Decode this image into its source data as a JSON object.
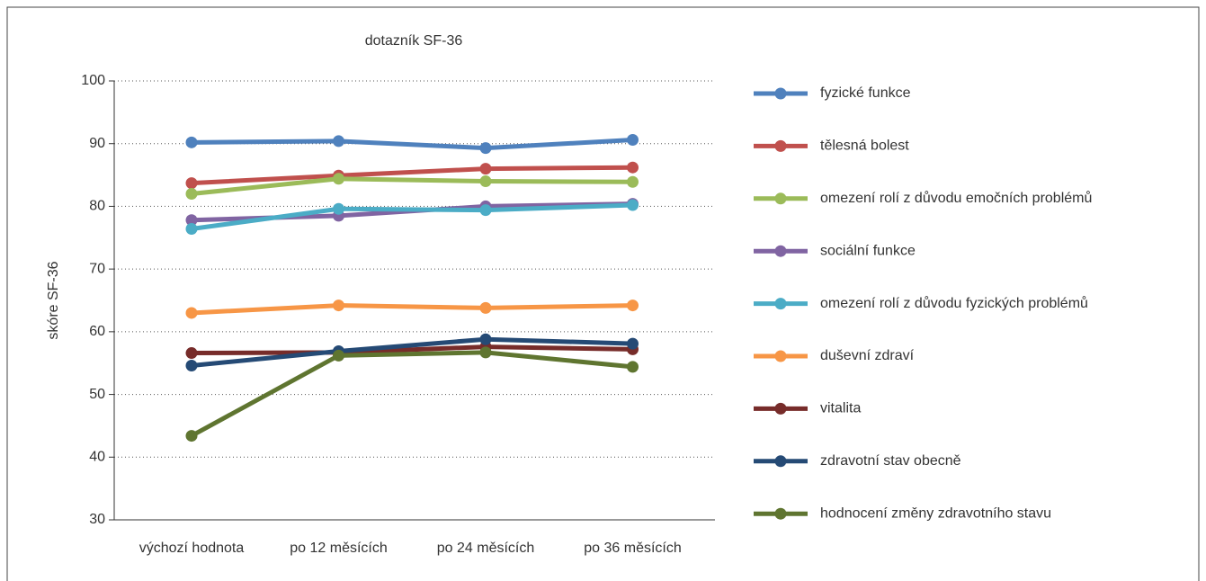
{
  "chart_data": {
    "type": "line",
    "title": "dotazník SF-36",
    "ylabel": "skóre SF-36",
    "categories": [
      "výchozí hodnota",
      "po 12 měsících",
      "po 24 měsících",
      "po 36 měsících"
    ],
    "ylim": [
      30,
      100
    ],
    "yticks": [
      30,
      40,
      50,
      60,
      70,
      80,
      90,
      100
    ],
    "grid": true,
    "legend": "right",
    "series": [
      {
        "name": "fyzické funkce",
        "color": "#4f81bd",
        "values": [
          90.2,
          90.4,
          89.3,
          90.6
        ]
      },
      {
        "name": "tělesná bolest",
        "color": "#c0504d",
        "values": [
          83.7,
          84.9,
          86.0,
          86.2
        ]
      },
      {
        "name": "omezení rolí z důvodu emočních problémů",
        "color": "#9bbb59",
        "values": [
          82.0,
          84.4,
          84.0,
          83.9
        ]
      },
      {
        "name": "sociální funkce",
        "color": "#8064a2",
        "values": [
          77.8,
          78.5,
          80.0,
          80.4
        ]
      },
      {
        "name": "omezení rolí z důvodu fyzických problémů",
        "color": "#4bacc6",
        "values": [
          76.4,
          79.6,
          79.4,
          80.2
        ]
      },
      {
        "name": "duševní zdraví",
        "color": "#f79646",
        "values": [
          63.0,
          64.2,
          63.8,
          64.2
        ]
      },
      {
        "name": "vitalita",
        "color": "#772c2a",
        "values": [
          56.6,
          56.7,
          57.6,
          57.2
        ]
      },
      {
        "name": "zdravotní stav obecně",
        "color": "#254a75",
        "values": [
          54.6,
          56.9,
          58.8,
          58.1
        ]
      },
      {
        "name": "hodnocení změny zdravotního stavu",
        "color": "#5f7530",
        "values": [
          43.4,
          56.2,
          56.7,
          54.4
        ]
      }
    ]
  }
}
